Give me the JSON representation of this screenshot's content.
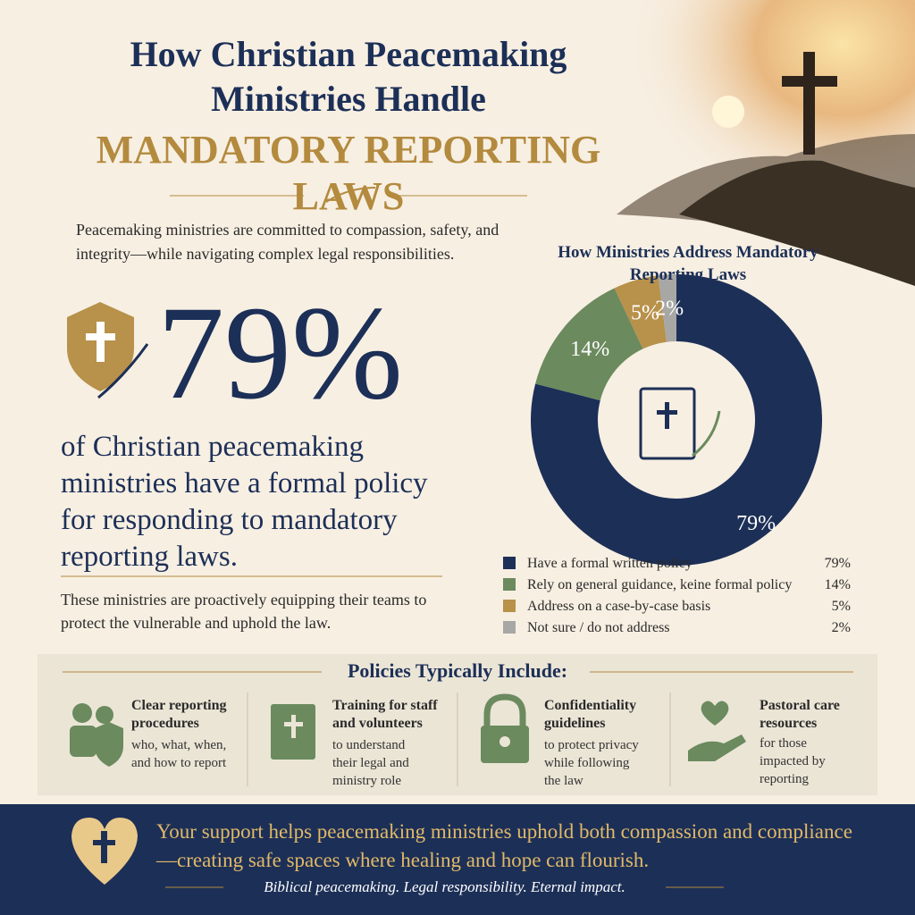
{
  "header": {
    "title_line1": "How Christian Peacemaking",
    "title_line2": "Ministries Handle",
    "title_highlight": "MANDATORY REPORTING LAWS"
  },
  "intro": "Peacemaking ministries are committed to compassion, safety, and integrity—while navigating complex legal responsibilities.",
  "stat": {
    "figure": "79%",
    "text": "of Christian peacemaking ministries have a formal policy for responding to mandatory reporting laws.",
    "note": "These ministries are proactively equipping their teams to protect the vulnerable and uphold the law."
  },
  "chart_data": {
    "type": "pie",
    "title": "How Ministries Address Mandatory Reporting Laws",
    "categories": [
      "Have a formal written policy",
      "Rely on general guidance, keine formal policy",
      "Address on a case-by-case basis",
      "Not sure / do not address"
    ],
    "values": [
      79,
      14,
      5,
      2
    ],
    "value_labels": [
      "79%",
      "14%",
      "5%",
      "2%"
    ],
    "colors": [
      "#1c2f57",
      "#6b8a5e",
      "#b8914a",
      "#a7a7a5"
    ]
  },
  "policies": {
    "title": "Policies Typically Include:",
    "items": [
      {
        "title": "Clear reporting procedures",
        "text": "who, what, when, and how to report"
      },
      {
        "title": "Training for staff and volunteers",
        "text": "to understand their legal and ministry role"
      },
      {
        "title": "Confidentiality guidelines",
        "text": "to protect privacy while following the law"
      },
      {
        "title": "Pastoral care resources",
        "text": "for those impacted by reporting"
      }
    ]
  },
  "footer": {
    "message": "Your support helps peacemaking ministries uphold both compassion and compliance—creating safe spaces where healing and hope can flourish.",
    "tagline": "Biblical peacemaking. Legal responsibility. Eternal impact."
  }
}
